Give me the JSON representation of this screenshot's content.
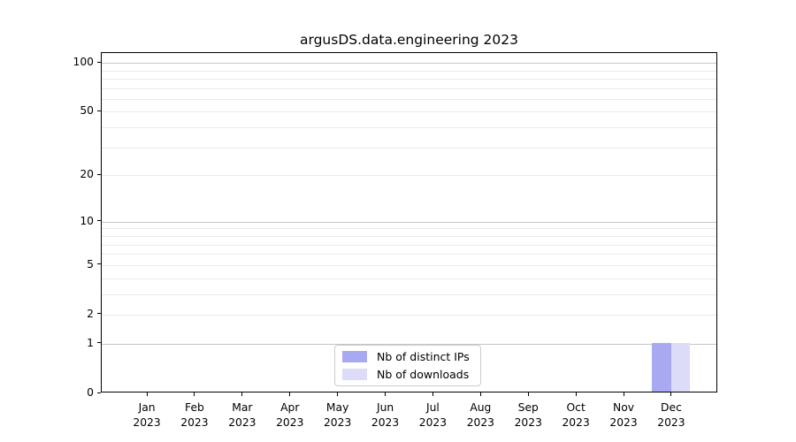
{
  "window": {
    "background": "#ffffff"
  },
  "chart_data": {
    "type": "bar",
    "title": "argusDS.data.engineering 2023",
    "categories": [
      "Jan\n2023",
      "Feb\n2023",
      "Mar\n2023",
      "Apr\n2023",
      "May\n2023",
      "Jun\n2023",
      "Jul\n2023",
      "Aug\n2023",
      "Sep\n2023",
      "Oct\n2023",
      "Nov\n2023",
      "Dec\n2023"
    ],
    "series": [
      {
        "name": "Nb of distinct IPs",
        "color": "#a9a9f2",
        "values": [
          0,
          0,
          0,
          0,
          0,
          0,
          0,
          0,
          0,
          0,
          0,
          1
        ]
      },
      {
        "name": "Nb of downloads",
        "color": "#dcdcf9",
        "values": [
          0,
          0,
          0,
          0,
          0,
          0,
          0,
          0,
          0,
          0,
          0,
          1
        ]
      }
    ],
    "xlabel": "",
    "ylabel": "",
    "yscale": "log1p",
    "ylim": [
      0,
      114.8
    ],
    "ytick_values": [
      0,
      1,
      2,
      5,
      10,
      20,
      50,
      100
    ],
    "major_grid_values": [
      1,
      10,
      100
    ],
    "minor_grid_values": [
      2,
      3,
      4,
      5,
      6,
      7,
      8,
      9,
      20,
      30,
      40,
      50,
      60,
      70,
      80,
      90
    ],
    "grid": true,
    "legend_position": "lower center",
    "colors": {
      "major_grid": "#c6c6c6",
      "minor_grid": "#eaeaea",
      "spine": "#000000",
      "text": "#000000"
    }
  }
}
